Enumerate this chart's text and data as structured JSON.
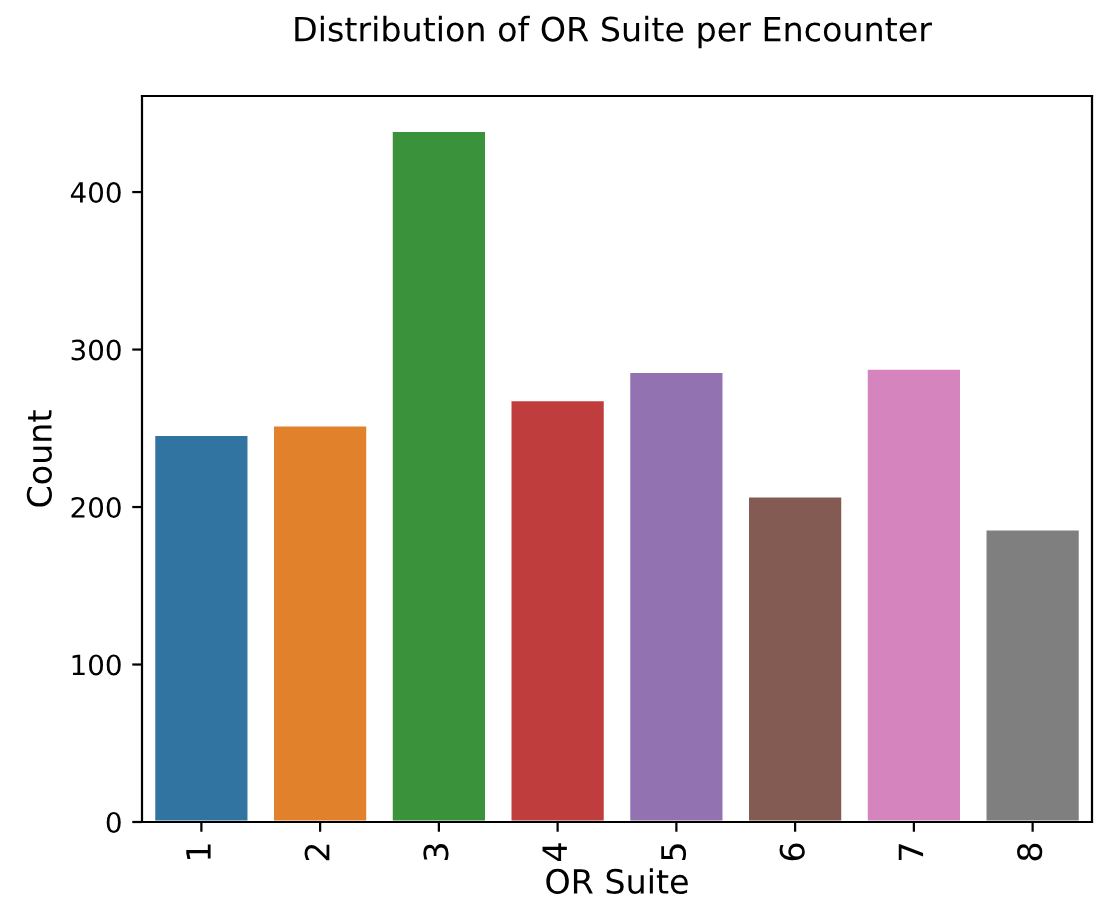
{
  "chart_data": {
    "type": "bar",
    "title": "Distribution of OR Suite per Encounter",
    "xlabel": "OR Suite",
    "ylabel": "Count",
    "categories": [
      "1",
      "2",
      "3",
      "4",
      "5",
      "6",
      "7",
      "8"
    ],
    "values": [
      246,
      252,
      439,
      268,
      286,
      207,
      288,
      186
    ],
    "colors": [
      "#3274a1",
      "#e1812c",
      "#3a923a",
      "#c03d3e",
      "#9372b2",
      "#845b53",
      "#d684bd",
      "#7f7f7f"
    ],
    "ylim": [
      0,
      461
    ],
    "yticks": [
      0,
      100,
      200,
      300,
      400
    ],
    "grid": false,
    "legend": false
  }
}
